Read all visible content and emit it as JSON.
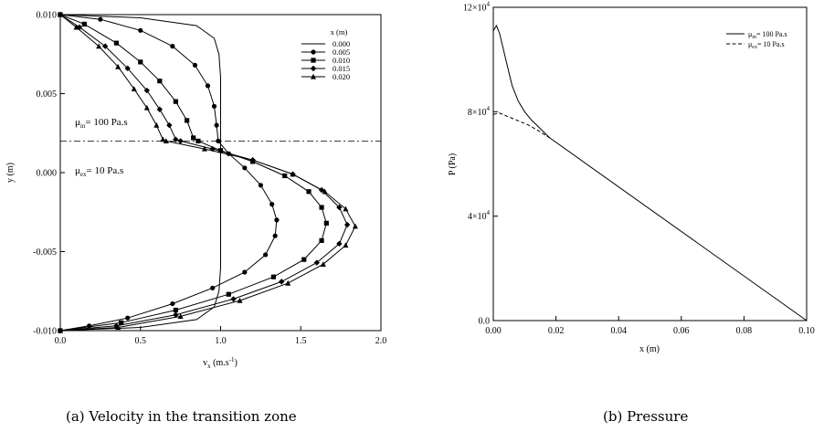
{
  "captions": {
    "a": "(a) Velocity in the transition zone",
    "b": "(b) Pressure"
  },
  "chart_data": [
    {
      "id": "a",
      "type": "line",
      "xlabel": "v",
      "xlabel_sub": "x",
      "xlabel_unit": "(m.s",
      "xlabel_unit_sup": "-1",
      "xlabel_unit_close": ")",
      "ylabel": "y (m)",
      "xlim": [
        0.0,
        2.0
      ],
      "ylim": [
        -0.01,
        0.01
      ],
      "xticks": [
        "0.0",
        "0.5",
        "1.0",
        "1.5",
        "2.0"
      ],
      "xtick_values": [
        0.0,
        0.5,
        1.0,
        1.5,
        2.0
      ],
      "yticks": [
        "-0.010",
        "-0.005",
        "0.000",
        "0.005",
        "0.010"
      ],
      "ytick_values": [
        -0.01,
        -0.005,
        0.0,
        0.005,
        0.01
      ],
      "legend": {
        "title": "x (m)",
        "position": "top-right",
        "entries": [
          {
            "label": "0.000",
            "marker": "none"
          },
          {
            "label": "0.005",
            "marker": "circle"
          },
          {
            "label": "0.010",
            "marker": "square"
          },
          {
            "label": "0.015",
            "marker": "diamond"
          },
          {
            "label": "0.020",
            "marker": "triangle"
          }
        ]
      },
      "interface_line": {
        "y": 0.002,
        "style": "dash-dot"
      },
      "annotations": [
        {
          "id": "mu_in",
          "text": "μ",
          "sub": "in",
          "rest": "= 100 Pa.s"
        },
        {
          "id": "mu_ex",
          "text": "μ",
          "sub": "ex",
          "rest": "= 10 Pa.s"
        }
      ],
      "series": [
        {
          "label": "0.000",
          "marker": "none",
          "points": [
            [
              0.0,
              0.01
            ],
            [
              0.5,
              0.0098
            ],
            [
              0.85,
              0.0093
            ],
            [
              0.96,
              0.0085
            ],
            [
              0.99,
              0.0075
            ],
            [
              1.0,
              0.006
            ],
            [
              1.0,
              0.0
            ],
            [
              1.0,
              -0.006
            ],
            [
              0.99,
              -0.0075
            ],
            [
              0.96,
              -0.0085
            ],
            [
              0.85,
              -0.0093
            ],
            [
              0.5,
              -0.0098
            ],
            [
              0.0,
              -0.01
            ]
          ]
        },
        {
          "label": "0.005",
          "marker": "circle",
          "points": [
            [
              0.0,
              0.01
            ],
            [
              0.25,
              0.0097
            ],
            [
              0.5,
              0.009
            ],
            [
              0.7,
              0.008
            ],
            [
              0.84,
              0.0068
            ],
            [
              0.92,
              0.0055
            ],
            [
              0.96,
              0.0042
            ],
            [
              0.975,
              0.003
            ],
            [
              0.985,
              0.002
            ],
            [
              1.05,
              0.0012
            ],
            [
              1.15,
              0.0003
            ],
            [
              1.25,
              -0.0008
            ],
            [
              1.32,
              -0.002
            ],
            [
              1.35,
              -0.003
            ],
            [
              1.34,
              -0.004
            ],
            [
              1.28,
              -0.0052
            ],
            [
              1.15,
              -0.0063
            ],
            [
              0.95,
              -0.0073
            ],
            [
              0.7,
              -0.0083
            ],
            [
              0.42,
              -0.0092
            ],
            [
              0.18,
              -0.0097
            ],
            [
              0.0,
              -0.01
            ]
          ]
        },
        {
          "label": "0.010",
          "marker": "square",
          "points": [
            [
              0.0,
              0.01
            ],
            [
              0.15,
              0.0094
            ],
            [
              0.35,
              0.0082
            ],
            [
              0.5,
              0.007
            ],
            [
              0.62,
              0.0058
            ],
            [
              0.72,
              0.0045
            ],
            [
              0.79,
              0.0033
            ],
            [
              0.83,
              0.0022
            ],
            [
              0.86,
              0.002
            ],
            [
              1.0,
              0.0014
            ],
            [
              1.2,
              0.0007
            ],
            [
              1.4,
              -0.0002
            ],
            [
              1.55,
              -0.0012
            ],
            [
              1.63,
              -0.0022
            ],
            [
              1.66,
              -0.0032
            ],
            [
              1.63,
              -0.0043
            ],
            [
              1.52,
              -0.0055
            ],
            [
              1.33,
              -0.0066
            ],
            [
              1.05,
              -0.0077
            ],
            [
              0.72,
              -0.0087
            ],
            [
              0.38,
              -0.0095
            ],
            [
              0.0,
              -0.01
            ]
          ]
        },
        {
          "label": "0.015",
          "marker": "diamond",
          "points": [
            [
              0.0,
              0.01
            ],
            [
              0.12,
              0.0092
            ],
            [
              0.28,
              0.008
            ],
            [
              0.42,
              0.0066
            ],
            [
              0.54,
              0.0052
            ],
            [
              0.62,
              0.004
            ],
            [
              0.68,
              0.003
            ],
            [
              0.72,
              0.0021
            ],
            [
              0.75,
              0.002
            ],
            [
              0.95,
              0.0015
            ],
            [
              1.2,
              0.0008
            ],
            [
              1.45,
              -0.0001
            ],
            [
              1.63,
              -0.0011
            ],
            [
              1.74,
              -0.0022
            ],
            [
              1.79,
              -0.0033
            ],
            [
              1.74,
              -0.0045
            ],
            [
              1.6,
              -0.0057
            ],
            [
              1.38,
              -0.0069
            ],
            [
              1.08,
              -0.008
            ],
            [
              0.72,
              -0.009
            ],
            [
              0.35,
              -0.0097
            ],
            [
              0.0,
              -0.01
            ]
          ]
        },
        {
          "label": "0.020",
          "marker": "triangle",
          "points": [
            [
              0.0,
              0.01
            ],
            [
              0.1,
              0.0092
            ],
            [
              0.24,
              0.008
            ],
            [
              0.36,
              0.0067
            ],
            [
              0.46,
              0.0053
            ],
            [
              0.54,
              0.0041
            ],
            [
              0.6,
              0.003
            ],
            [
              0.64,
              0.0021
            ],
            [
              0.66,
              0.002
            ],
            [
              0.9,
              0.0015
            ],
            [
              1.2,
              0.0008
            ],
            [
              1.45,
              -0.0001
            ],
            [
              1.65,
              -0.0012
            ],
            [
              1.78,
              -0.0023
            ],
            [
              1.84,
              -0.0034
            ],
            [
              1.78,
              -0.0046
            ],
            [
              1.64,
              -0.0058
            ],
            [
              1.42,
              -0.007
            ],
            [
              1.12,
              -0.0081
            ],
            [
              0.75,
              -0.0091
            ],
            [
              0.36,
              -0.0098
            ],
            [
              0.0,
              -0.01
            ]
          ]
        }
      ]
    },
    {
      "id": "b",
      "type": "line",
      "xlabel": "x (m)",
      "ylabel": "P (Pa)",
      "xlim": [
        0.0,
        0.1
      ],
      "ylim": [
        0,
        120000
      ],
      "xticks": [
        "0.00",
        "0.02",
        "0.04",
        "0.06",
        "0.08",
        "0.10"
      ],
      "xtick_values": [
        0.0,
        0.02,
        0.04,
        0.06,
        0.08,
        0.1
      ],
      "yticks": [
        {
          "base": "0.0",
          "exp": ""
        },
        {
          "base": "4×10",
          "exp": "4"
        },
        {
          "base": "8×10",
          "exp": "4"
        },
        {
          "base": "12×10",
          "exp": "4"
        }
      ],
      "ytick_values": [
        0,
        40000,
        80000,
        120000
      ],
      "legend": {
        "position": "top-right",
        "entries": [
          {
            "mu": "μ",
            "sub": "in",
            "rest": "= 100 Pa.s",
            "style": "solid"
          },
          {
            "mu": "μ",
            "sub": "ex",
            "rest": "= 10 Pa.s",
            "style": "dashed"
          }
        ]
      },
      "series": [
        {
          "label": "μin = 100 Pa.s",
          "style": "solid",
          "points": [
            [
              0.0,
              111000
            ],
            [
              0.001,
              113000
            ],
            [
              0.002,
              110000
            ],
            [
              0.004,
              100000
            ],
            [
              0.006,
              90000
            ],
            [
              0.008,
              84000
            ],
            [
              0.01,
              80000
            ],
            [
              0.012,
              77000
            ],
            [
              0.015,
              73500
            ],
            [
              0.018,
              70000
            ],
            [
              0.1,
              0
            ]
          ]
        },
        {
          "label": "μex = 10 Pa.s",
          "style": "dashed",
          "points": [
            [
              0.0,
              79000
            ],
            [
              0.002,
              79500
            ],
            [
              0.005,
              78000
            ],
            [
              0.008,
              76500
            ],
            [
              0.011,
              75000
            ],
            [
              0.014,
              73000
            ],
            [
              0.018,
              70000
            ]
          ]
        }
      ]
    }
  ]
}
